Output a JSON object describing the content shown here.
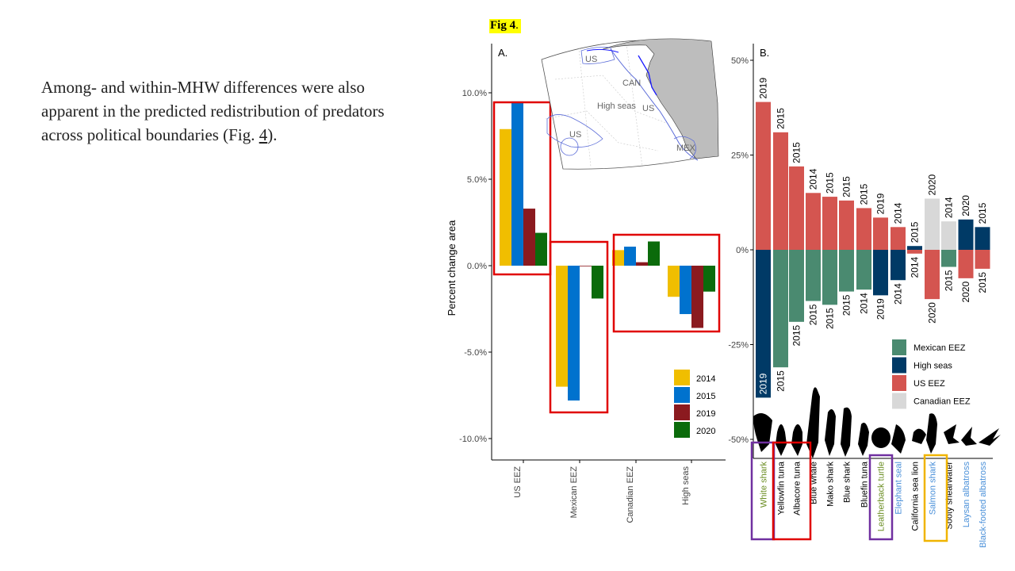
{
  "text": {
    "para_main": "Among- and within-MHW differences were also apparent in the predicted redistribution of predators across political boundaries (Fig. ",
    "para_link": "4",
    "para_end": ").",
    "fig_label": "Fig 4",
    "fig_label_dot": "."
  },
  "map": {
    "labels": [
      "US",
      "CAN",
      "High seas",
      "US",
      "US",
      "MEX"
    ]
  },
  "chart_data": [
    {
      "type": "bar",
      "panel": "A.",
      "ylabel": "Percent change area",
      "xlabel": "",
      "categories": [
        "US EEZ",
        "Mexican EEZ",
        "Canadian EEZ",
        "High seas"
      ],
      "series": [
        {
          "name": "2014",
          "color": "#F0BE00",
          "values": [
            7.9,
            -7.0,
            0.9,
            -1.8
          ]
        },
        {
          "name": "2015",
          "color": "#0072CE",
          "values": [
            9.5,
            -7.8,
            1.1,
            -2.8
          ]
        },
        {
          "name": "2019",
          "color": "#8B1A1F",
          "values": [
            3.3,
            0.0,
            0.2,
            -3.6
          ]
        },
        {
          "name": "2020",
          "color": "#0B6B0B",
          "values": [
            1.9,
            -1.9,
            1.4,
            -1.5
          ]
        }
      ],
      "ylim": [
        -10.8,
        12.7
      ],
      "yticks": [
        "10.0%",
        "5.0%",
        "0.0%",
        "-5.0%",
        "-10.0%"
      ],
      "legend_position": "bottom-right",
      "grid": false,
      "highlight_colors": [
        "#E00000"
      ]
    },
    {
      "type": "bar",
      "panel": "B.",
      "stacked": "diverging",
      "ylim": [
        -56,
        57
      ],
      "yticks": [
        "50%",
        "25%",
        "0%",
        "-25%",
        "-50%"
      ],
      "species": [
        {
          "name": "White shark",
          "label_color": "#6B8E23",
          "pos": {
            "year": "2019",
            "color": "#D45550",
            "value": 39
          },
          "neg": {
            "year": "2019",
            "color": "#003A66",
            "value": -39
          }
        },
        {
          "name": "Yellowfin tuna",
          "label_color": "#000000",
          "pos": {
            "year": "2015",
            "color": "#D45550",
            "value": 31
          },
          "neg": {
            "year": "2015",
            "color": "#4A8A70",
            "value": -31
          }
        },
        {
          "name": "Albacore tuna",
          "label_color": "#000000",
          "pos": {
            "year": "2015",
            "color": "#D45550",
            "value": 22
          },
          "neg": {
            "year": "2015",
            "color": "#4A8A70",
            "value": -19
          }
        },
        {
          "name": "Blue whale",
          "label_color": "#000000",
          "pos": {
            "year": "2014",
            "color": "#D45550",
            "value": 15
          },
          "neg": {
            "year": "2015",
            "color": "#4A8A70",
            "value": -13.5
          }
        },
        {
          "name": "Mako shark",
          "label_color": "#000000",
          "pos": {
            "year": "2015",
            "color": "#D45550",
            "value": 14
          },
          "neg": {
            "year": "2015",
            "color": "#4A8A70",
            "value": -14.5
          }
        },
        {
          "name": "Blue shark",
          "label_color": "#000000",
          "pos": {
            "year": "2015",
            "color": "#D45550",
            "value": 13
          },
          "neg": {
            "year": "2015",
            "color": "#4A8A70",
            "value": -11
          }
        },
        {
          "name": "Bluefin tuna",
          "label_color": "#000000",
          "pos": {
            "year": "2015",
            "color": "#D45550",
            "value": 11
          },
          "neg": {
            "year": "2014",
            "color": "#4A8A70",
            "value": -10.5
          }
        },
        {
          "name": "Leatherback turtle",
          "label_color": "#6B8E23",
          "pos": {
            "year": "2019",
            "color": "#D45550",
            "value": 8.5
          },
          "neg": {
            "year": "2019",
            "color": "#003A66",
            "value": -12
          }
        },
        {
          "name": "Elephant seal",
          "label_color": "#4A90D9",
          "pos": {
            "year": "2014",
            "color": "#D45550",
            "value": 6
          },
          "neg": {
            "year": "2014",
            "color": "#003A66",
            "value": -8
          }
        },
        {
          "name": "California sea lion",
          "label_color": "#000000",
          "pos": {
            "year": "2015",
            "color": "#003A66",
            "value": 1
          },
          "neg": {
            "year": "2014",
            "color": "#D45550",
            "value": -1
          }
        },
        {
          "name": "Salmon shark",
          "label_color": "#4A90D9",
          "pos": {
            "year": "2020",
            "color": "#D8D8D8",
            "value": 13.5
          },
          "neg": {
            "year": "2020",
            "color": "#D45550",
            "value": -13
          }
        },
        {
          "name": "Sooty shearwater",
          "label_color": "#000000",
          "pos": {
            "year": "2014",
            "color": "#D8D8D8",
            "value": 7.5
          },
          "neg": {
            "year": "2015",
            "color": "#4A8A70",
            "value": -4.5
          }
        },
        {
          "name": "Laysan albatross",
          "label_color": "#4A90D9",
          "pos": {
            "year": "2020",
            "color": "#003A66",
            "value": 8
          },
          "neg": {
            "year": "2020",
            "color": "#D45550",
            "value": -7.5
          }
        },
        {
          "name": "Black-footed albatross",
          "label_color": "#4A90D9",
          "pos": {
            "year": "2015",
            "color": "#003A66",
            "value": 6
          },
          "neg": {
            "year": "2015",
            "color": "#D45550",
            "value": -5
          }
        }
      ],
      "legend": [
        {
          "name": "Mexican EEZ",
          "color": "#4A8A70"
        },
        {
          "name": "High seas",
          "color": "#003A66"
        },
        {
          "name": "US EEZ",
          "color": "#D45550"
        },
        {
          "name": "Canadian EEZ",
          "color": "#D8D8D8"
        }
      ],
      "legend_position": "bottom-right",
      "highlight_colors": [
        "#7030A0",
        "#E00000",
        "#7030A0",
        "#F0B400"
      ]
    }
  ]
}
